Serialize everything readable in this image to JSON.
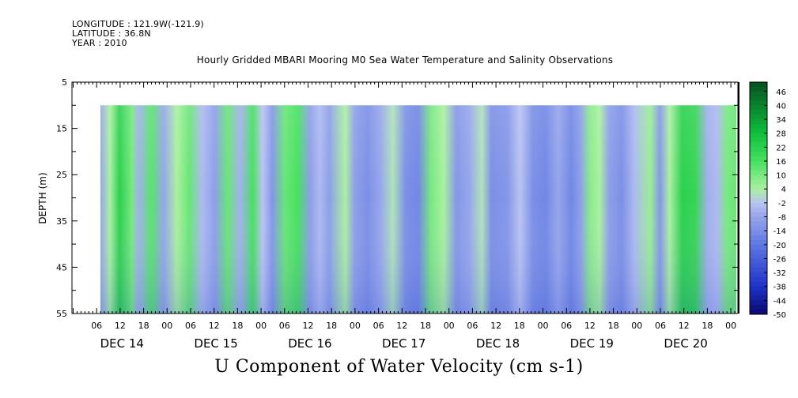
{
  "header": {
    "longitude": "LONGITUDE : 121.9W(-121.9)",
    "latitude": "LATITUDE : 36.8N",
    "year": "YEAR : 2010"
  },
  "chart_data": {
    "type": "heatmap",
    "title": "Hourly Gridded MBARI Mooring M0 Sea Water Temperature and Salinity Observations",
    "xlabel": "",
    "ylabel": "DEPTH (m)",
    "colorbar_title": "U Component of Water Velocity (cm s-1)",
    "y_ticks": [
      5,
      15,
      25,
      35,
      45,
      55
    ],
    "ylim": [
      55,
      5
    ],
    "data_depth_range": [
      10,
      55
    ],
    "hour_tick_labels": [
      "06",
      "12",
      "18",
      "00",
      "06",
      "12",
      "18",
      "00",
      "06",
      "12",
      "18",
      "00",
      "06",
      "12",
      "18",
      "00",
      "06",
      "12",
      "18",
      "00",
      "06",
      "12",
      "18",
      "00",
      "06",
      "12",
      "18",
      "00"
    ],
    "day_labels": [
      "DEC 14",
      "DEC 15",
      "DEC 16",
      "DEC 17",
      "DEC 18",
      "DEC 19",
      "DEC 20"
    ],
    "colorbar_labels": [
      "46",
      "40",
      "34",
      "28",
      "22",
      "16",
      "10",
      "4",
      "-2",
      "-8",
      "-14",
      "-20",
      "-26",
      "-32",
      "-38",
      "-44",
      "-50"
    ],
    "colorbar_range": [
      -50,
      50
    ],
    "bands": [
      {
        "x": 0.0,
        "v": -8
      },
      {
        "x": 1.5,
        "v": 4
      },
      {
        "x": 3.0,
        "v": 22
      },
      {
        "x": 5.0,
        "v": 10
      },
      {
        "x": 6.0,
        "v": -6
      },
      {
        "x": 8.0,
        "v": 14
      },
      {
        "x": 10.0,
        "v": -8
      },
      {
        "x": 12.0,
        "v": 4
      },
      {
        "x": 14.0,
        "v": 12
      },
      {
        "x": 16.0,
        "v": -4
      },
      {
        "x": 18.0,
        "v": -10
      },
      {
        "x": 20.0,
        "v": 12
      },
      {
        "x": 22.0,
        "v": -6
      },
      {
        "x": 24.0,
        "v": 16
      },
      {
        "x": 25.5,
        "v": -2
      },
      {
        "x": 27.0,
        "v": -12
      },
      {
        "x": 29.0,
        "v": 12
      },
      {
        "x": 31.0,
        "v": 16
      },
      {
        "x": 33.0,
        "v": -10
      },
      {
        "x": 34.5,
        "v": -4
      },
      {
        "x": 36.0,
        "v": -10
      },
      {
        "x": 38.5,
        "v": 4
      },
      {
        "x": 40.0,
        "v": -10
      },
      {
        "x": 42.0,
        "v": -14
      },
      {
        "x": 44.0,
        "v": -8
      },
      {
        "x": 46.0,
        "v": 2
      },
      {
        "x": 48.0,
        "v": -14
      },
      {
        "x": 50.0,
        "v": -16
      },
      {
        "x": 52.0,
        "v": 10
      },
      {
        "x": 54.0,
        "v": 4
      },
      {
        "x": 56.0,
        "v": -12
      },
      {
        "x": 58.0,
        "v": -8
      },
      {
        "x": 60.0,
        "v": 2
      },
      {
        "x": 61.5,
        "v": -14
      },
      {
        "x": 64.0,
        "v": -12
      },
      {
        "x": 66.0,
        "v": -2
      },
      {
        "x": 68.0,
        "v": -14
      },
      {
        "x": 70.0,
        "v": -16
      },
      {
        "x": 72.0,
        "v": -8
      },
      {
        "x": 74.0,
        "v": -16
      },
      {
        "x": 75.5,
        "v": -10
      },
      {
        "x": 77.0,
        "v": 8
      },
      {
        "x": 78.5,
        "v": 4
      },
      {
        "x": 80.0,
        "v": -10
      },
      {
        "x": 82.0,
        "v": -14
      },
      {
        "x": 84.0,
        "v": -4
      },
      {
        "x": 86.5,
        "v": 6
      },
      {
        "x": 88.0,
        "v": -12
      },
      {
        "x": 89.5,
        "v": 4
      },
      {
        "x": 91.5,
        "v": 22
      },
      {
        "x": 93.5,
        "v": 20
      },
      {
        "x": 95.5,
        "v": -6
      },
      {
        "x": 97.0,
        "v": -4
      },
      {
        "x": 98.5,
        "v": 10
      },
      {
        "x": 100.0,
        "v": 12
      }
    ]
  }
}
